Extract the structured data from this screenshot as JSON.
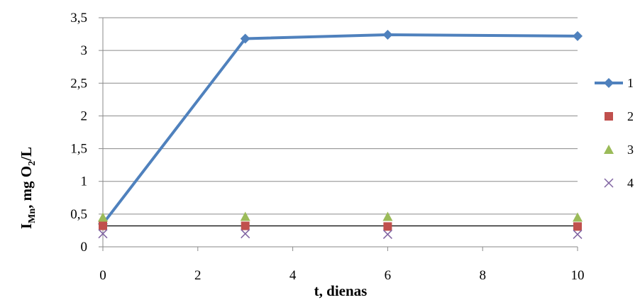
{
  "chart_data": {
    "type": "scatter",
    "title": "",
    "xlabel": "t, dienas",
    "ylabel": {
      "main": "I",
      "sub": "Mn",
      "rest_a": ", mg O",
      "sub2": "2",
      "rest_b": "/L"
    },
    "xlim": [
      0,
      10
    ],
    "ylim": [
      0,
      3.5
    ],
    "xticks": [
      0,
      2,
      4,
      6,
      8,
      10
    ],
    "xtick_labels": [
      "0",
      "2",
      "4",
      "6",
      "8",
      "10"
    ],
    "yticks": [
      0,
      0.5,
      1,
      1.5,
      2,
      2.5,
      3,
      3.5
    ],
    "ytick_labels": [
      "0",
      "0,5",
      "1",
      "1,5",
      "2",
      "2,5",
      "3",
      "3,5"
    ],
    "grid": "horizontal",
    "legend_position": "right",
    "reference_line": {
      "y": 0.32,
      "color": "#000000"
    },
    "series": [
      {
        "name": "1",
        "marker": "diamond",
        "line": true,
        "color": "#4F81BD",
        "x": [
          0,
          3,
          6,
          10
        ],
        "y": [
          0.35,
          3.18,
          3.24,
          3.22
        ]
      },
      {
        "name": "2",
        "marker": "square",
        "line": false,
        "color": "#C0504D",
        "x": [
          0,
          3,
          6,
          10
        ],
        "y": [
          0.32,
          0.32,
          0.31,
          0.31
        ]
      },
      {
        "name": "3",
        "marker": "triangle",
        "line": false,
        "color": "#9BBB59",
        "x": [
          0,
          3,
          6,
          10
        ],
        "y": [
          0.45,
          0.46,
          0.46,
          0.45
        ]
      },
      {
        "name": "4",
        "marker": "x",
        "line": false,
        "color": "#8064A2",
        "x": [
          0,
          3,
          6,
          10
        ],
        "y": [
          0.2,
          0.2,
          0.19,
          0.19
        ]
      }
    ]
  }
}
